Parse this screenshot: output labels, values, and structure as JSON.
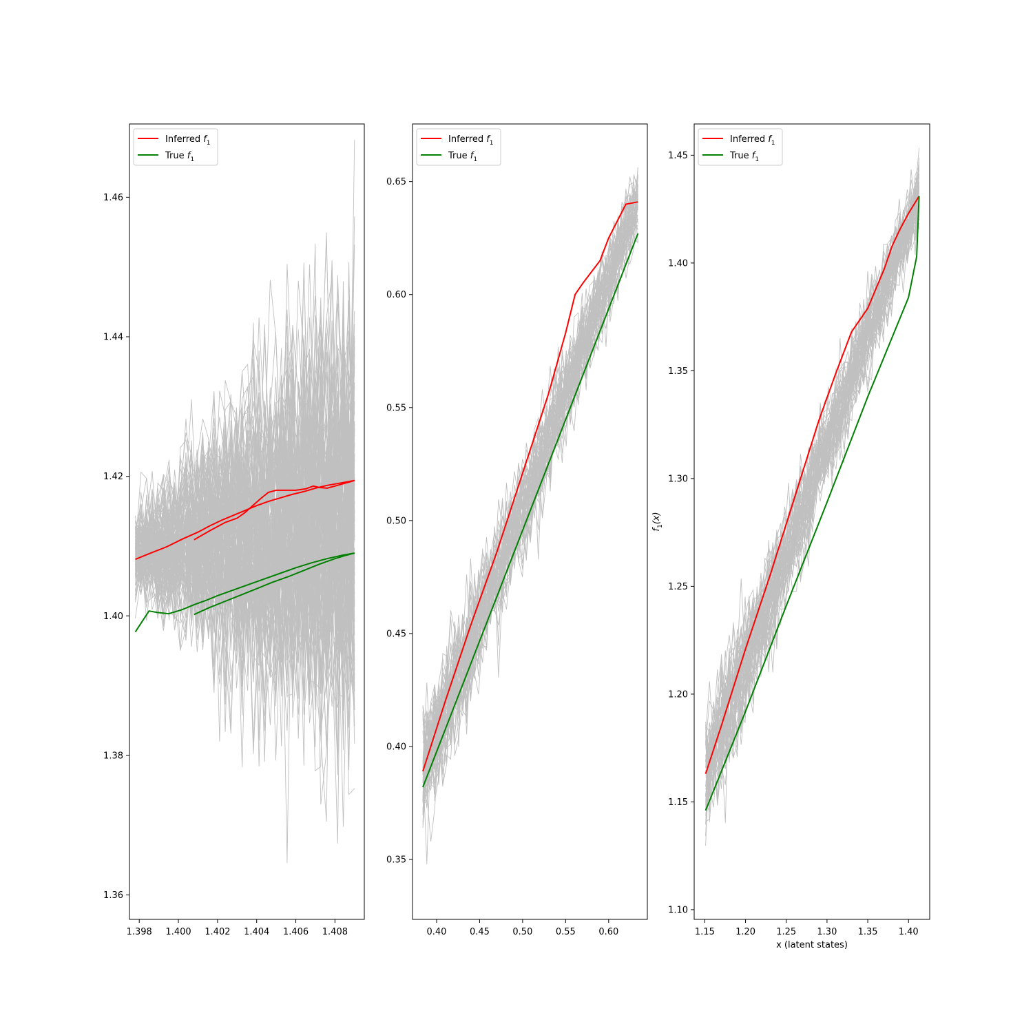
{
  "chart_data": [
    {
      "type": "line",
      "xlabel": "",
      "ylabel": "",
      "xlim": [
        1.3975,
        1.4095
      ],
      "ylim": [
        1.3565,
        1.4705
      ],
      "xticks": [
        1.398,
        1.4,
        1.402,
        1.404,
        1.406,
        1.408
      ],
      "xtick_labels": [
        "1.398",
        "1.400",
        "1.402",
        "1.404",
        "1.406",
        "1.408"
      ],
      "yticks": [
        1.36,
        1.38,
        1.4,
        1.42,
        1.44,
        1.46
      ],
      "ytick_labels": [
        "1.36",
        "1.38",
        "1.40",
        "1.42",
        "1.44",
        "1.46"
      ],
      "legend": {
        "position": "top-left",
        "entries": [
          {
            "label_main": "Inferred ",
            "label_math": "f",
            "label_sub": "1",
            "color": "#ff0000"
          },
          {
            "label_main": "True ",
            "label_math": "f",
            "label_sub": "1",
            "color": "#008000"
          }
        ]
      },
      "samples": {
        "color": "#c0c0c0",
        "count": 120,
        "x_start": 1.3978,
        "x_end": 1.409,
        "center_start": 1.409,
        "center_end": 1.4135,
        "spread_start": 0.003,
        "spread_end": 0.018,
        "n_points": 40
      },
      "series": [
        {
          "color": "#ff0000",
          "x": [
            1.3978,
            1.3985,
            1.3994,
            1.4002,
            1.401,
            1.4016,
            1.4022,
            1.4028,
            1.4034,
            1.404,
            1.4046,
            1.4052,
            1.4058,
            1.4064,
            1.407,
            1.4076,
            1.4082,
            1.409
          ],
          "y": [
            1.4081,
            1.4089,
            1.4099,
            1.411,
            1.412,
            1.4129,
            1.4137,
            1.4144,
            1.4151,
            1.4158,
            1.4164,
            1.4169,
            1.4174,
            1.4178,
            1.4183,
            1.4187,
            1.419,
            1.4194
          ]
        },
        {
          "color": "#ff0000",
          "x": [
            1.4008,
            1.4016,
            1.4024,
            1.403,
            1.4034,
            1.4038,
            1.4042,
            1.4046,
            1.405,
            1.4055,
            1.406,
            1.4065,
            1.4069,
            1.4072,
            1.4076,
            1.408,
            1.4085,
            1.409
          ],
          "y": [
            1.4109,
            1.4122,
            1.4134,
            1.414,
            1.4148,
            1.4158,
            1.4168,
            1.4177,
            1.418,
            1.418,
            1.418,
            1.4182,
            1.4186,
            1.4184,
            1.4183,
            1.4186,
            1.419,
            1.4194
          ]
        },
        {
          "color": "#008000",
          "x": [
            1.3978,
            1.3985,
            1.3989,
            1.3995,
            1.4002,
            1.4008,
            1.4014,
            1.402,
            1.4028,
            1.4036,
            1.4044,
            1.4052,
            1.406,
            1.4068,
            1.4076,
            1.4084,
            1.409
          ],
          "y": [
            1.3977,
            1.4007,
            1.4005,
            1.4003,
            1.4009,
            1.4016,
            1.4022,
            1.4029,
            1.4037,
            1.4045,
            1.4053,
            1.4061,
            1.4069,
            1.4076,
            1.4082,
            1.4087,
            1.409
          ]
        },
        {
          "color": "#008000",
          "x": [
            1.4008,
            1.4016,
            1.4024,
            1.4032,
            1.404,
            1.4048,
            1.4056,
            1.4064,
            1.4072,
            1.408,
            1.4086,
            1.409
          ],
          "y": [
            1.4002,
            1.4012,
            1.4021,
            1.403,
            1.4039,
            1.4048,
            1.4056,
            1.4065,
            1.4074,
            1.4082,
            1.4087,
            1.409
          ]
        }
      ]
    },
    {
      "type": "line",
      "xlabel": "",
      "ylabel": "",
      "xlim": [
        0.372,
        0.645
      ],
      "ylim": [
        0.3235,
        0.6755
      ],
      "xticks": [
        0.4,
        0.45,
        0.5,
        0.55,
        0.6
      ],
      "xtick_labels": [
        "0.40",
        "0.45",
        "0.50",
        "0.55",
        "0.60"
      ],
      "yticks": [
        0.35,
        0.4,
        0.45,
        0.5,
        0.55,
        0.6,
        0.65
      ],
      "ytick_labels": [
        "0.35",
        "0.40",
        "0.45",
        "0.50",
        "0.55",
        "0.60",
        "0.65"
      ],
      "legend": {
        "position": "top-left",
        "entries": [
          {
            "label_main": "Inferred ",
            "label_math": "f",
            "label_sub": "1",
            "color": "#ff0000"
          },
          {
            "label_main": "True ",
            "label_math": "f",
            "label_sub": "1",
            "color": "#008000"
          }
        ]
      },
      "samples": {
        "color": "#c0c0c0",
        "count": 60,
        "x_start": 0.384,
        "x_end": 0.634,
        "center_start": 0.389,
        "center_end": 0.641,
        "spread_start": 0.014,
        "spread_end": 0.008,
        "n_points": 55
      },
      "series": [
        {
          "color": "#ff0000",
          "x": [
            0.384,
            0.41,
            0.44,
            0.47,
            0.5,
            0.53,
            0.55,
            0.561,
            0.57,
            0.58,
            0.59,
            0.6,
            0.62,
            0.634
          ],
          "y": [
            0.389,
            0.42,
            0.454,
            0.486,
            0.521,
            0.556,
            0.583,
            0.6,
            0.605,
            0.61,
            0.615,
            0.625,
            0.64,
            0.641
          ]
        },
        {
          "color": "#008000",
          "x": [
            0.384,
            0.634
          ],
          "y": [
            0.382,
            0.627
          ]
        }
      ]
    },
    {
      "type": "line",
      "xlabel": "x (latent states)",
      "ylabel_main": "f",
      "ylabel_sub": "1",
      "ylabel_rest": "(x)",
      "xlim": [
        1.137,
        1.426
      ],
      "ylim": [
        1.0955,
        1.4645
      ],
      "xticks": [
        1.15,
        1.2,
        1.25,
        1.3,
        1.35,
        1.4
      ],
      "xtick_labels": [
        "1.15",
        "1.20",
        "1.25",
        "1.30",
        "1.35",
        "1.40"
      ],
      "yticks": [
        1.1,
        1.15,
        1.2,
        1.25,
        1.3,
        1.35,
        1.4,
        1.45
      ],
      "ytick_labels": [
        "1.10",
        "1.15",
        "1.20",
        "1.25",
        "1.30",
        "1.35",
        "1.40",
        "1.45"
      ],
      "legend": {
        "position": "top-left",
        "entries": [
          {
            "label_main": "Inferred ",
            "label_math": "f",
            "label_sub": "1",
            "color": "#ff0000"
          },
          {
            "label_main": "True ",
            "label_math": "f",
            "label_sub": "1",
            "color": "#008000"
          }
        ]
      },
      "samples": {
        "color": "#c0c0c0",
        "count": 60,
        "x_start": 1.151,
        "x_end": 1.413,
        "center_start": 1.163,
        "center_end": 1.431,
        "spread_start": 0.016,
        "spread_end": 0.008,
        "n_points": 55
      },
      "series": [
        {
          "color": "#ff0000",
          "x": [
            1.151,
            1.17,
            1.2,
            1.23,
            1.26,
            1.29,
            1.31,
            1.33,
            1.35,
            1.37,
            1.38,
            1.39,
            1.4,
            1.413
          ],
          "y": [
            1.163,
            1.185,
            1.221,
            1.255,
            1.291,
            1.327,
            1.348,
            1.368,
            1.379,
            1.397,
            1.408,
            1.416,
            1.423,
            1.431
          ]
        },
        {
          "color": "#008000",
          "x": [
            1.151,
            1.2,
            1.25,
            1.3,
            1.35,
            1.4,
            1.41,
            1.413
          ],
          "y": [
            1.146,
            1.192,
            1.241,
            1.289,
            1.338,
            1.384,
            1.403,
            1.431
          ]
        }
      ]
    }
  ]
}
